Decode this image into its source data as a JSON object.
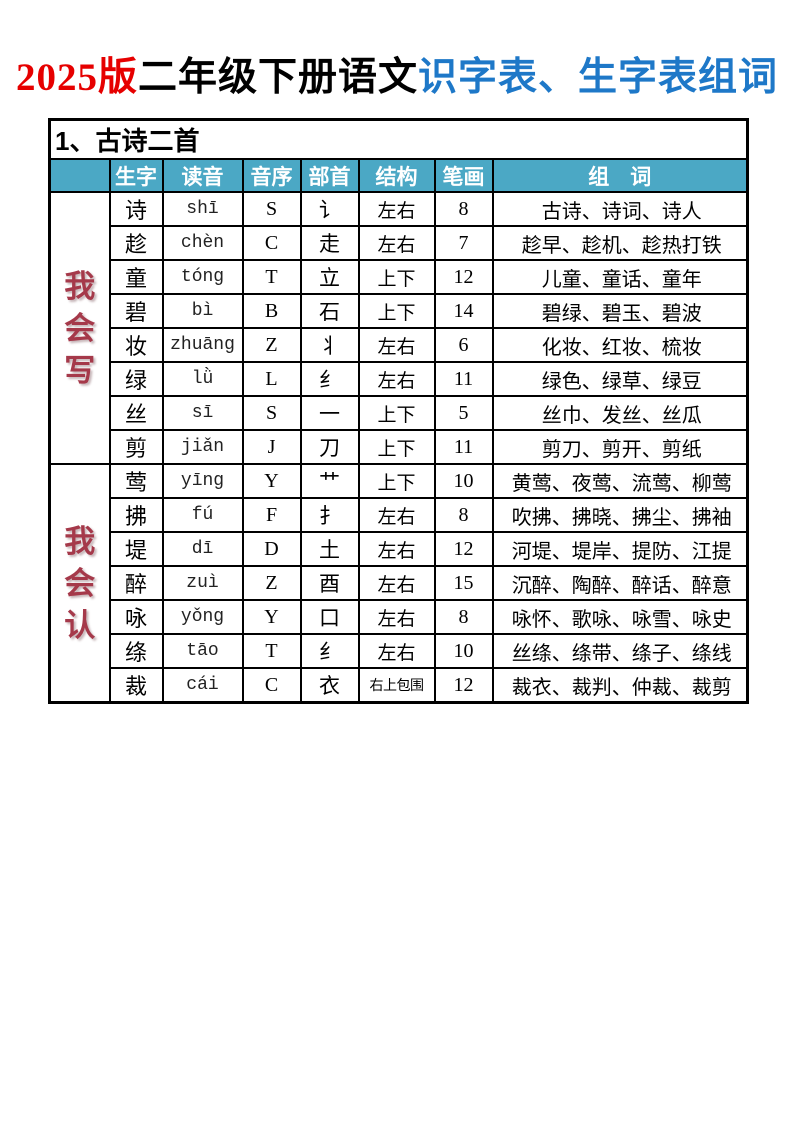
{
  "colors": {
    "title_red": "#e60000",
    "title_black": "#000000",
    "title_blue": "#1e78c8",
    "header_bg": "#4ba8c5",
    "header_text": "#ffffff",
    "label_bg": "#daeaf2",
    "label_text": "#a5394a",
    "border": "#000000"
  },
  "title": {
    "part_red": "2025版",
    "part_black": "二年级下册语文",
    "part_blue": "识字表、生字表组词"
  },
  "table": {
    "section_title": "1、古诗二首",
    "columns": [
      "生字",
      "读音",
      "音序",
      "部首",
      "结构",
      "笔画",
      "组　词"
    ],
    "groups": [
      {
        "label": "我会写",
        "rows": [
          {
            "char": "诗",
            "pinyin": "shī",
            "initial": "S",
            "radical": "讠",
            "structure": "左右",
            "strokes": "8",
            "words": "古诗、诗词、诗人"
          },
          {
            "char": "趁",
            "pinyin": "chèn",
            "initial": "C",
            "radical": "走",
            "structure": "左右",
            "strokes": "7",
            "words": "趁早、趁机、趁热打铁"
          },
          {
            "char": "童",
            "pinyin": "tóng",
            "initial": "T",
            "radical": "立",
            "structure": "上下",
            "strokes": "12",
            "words": "儿童、童话、童年"
          },
          {
            "char": "碧",
            "pinyin": "bì",
            "initial": "B",
            "radical": "石",
            "structure": "上下",
            "strokes": "14",
            "words": "碧绿、碧玉、碧波"
          },
          {
            "char": "妆",
            "pinyin": "zhuāng",
            "initial": "Z",
            "radical": "丬",
            "structure": "左右",
            "strokes": "6",
            "words": "化妆、红妆、梳妆"
          },
          {
            "char": "绿",
            "pinyin": "lǜ",
            "initial": "L",
            "radical": "纟",
            "structure": "左右",
            "strokes": "11",
            "words": "绿色、绿草、绿豆"
          },
          {
            "char": "丝",
            "pinyin": "sī",
            "initial": "S",
            "radical": "一",
            "structure": "上下",
            "strokes": "5",
            "words": "丝巾、发丝、丝瓜"
          },
          {
            "char": "剪",
            "pinyin": "jiǎn",
            "initial": "J",
            "radical": "刀",
            "structure": "上下",
            "strokes": "11",
            "words": "剪刀、剪开、剪纸"
          }
        ]
      },
      {
        "label": "我会认",
        "rows": [
          {
            "char": "莺",
            "pinyin": "yīng",
            "initial": "Y",
            "radical": "艹",
            "structure": "上下",
            "strokes": "10",
            "words": "黄莺、夜莺、流莺、柳莺"
          },
          {
            "char": "拂",
            "pinyin": "fú",
            "initial": "F",
            "radical": "扌",
            "structure": "左右",
            "strokes": "8",
            "words": "吹拂、拂晓、拂尘、拂袖"
          },
          {
            "char": "堤",
            "pinyin": "dī",
            "initial": "D",
            "radical": "土",
            "structure": "左右",
            "strokes": "12",
            "words": "河堤、堤岸、提防、江提"
          },
          {
            "char": "醉",
            "pinyin": "zuì",
            "initial": "Z",
            "radical": "酉",
            "structure": "左右",
            "strokes": "15",
            "words": "沉醉、陶醉、醉话、醉意"
          },
          {
            "char": "咏",
            "pinyin": "yǒng",
            "initial": "Y",
            "radical": "口",
            "structure": "左右",
            "strokes": "8",
            "words": "咏怀、歌咏、咏雪、咏史"
          },
          {
            "char": "绦",
            "pinyin": "tāo",
            "initial": "T",
            "radical": "纟",
            "structure": "左右",
            "strokes": "10",
            "words": "丝绦、绦带、绦子、绦线"
          },
          {
            "char": "裁",
            "pinyin": "cái",
            "initial": "C",
            "radical": "衣",
            "structure": "右上包围",
            "strokes": "12",
            "words": "裁衣、裁判、仲裁、裁剪"
          }
        ]
      }
    ]
  }
}
